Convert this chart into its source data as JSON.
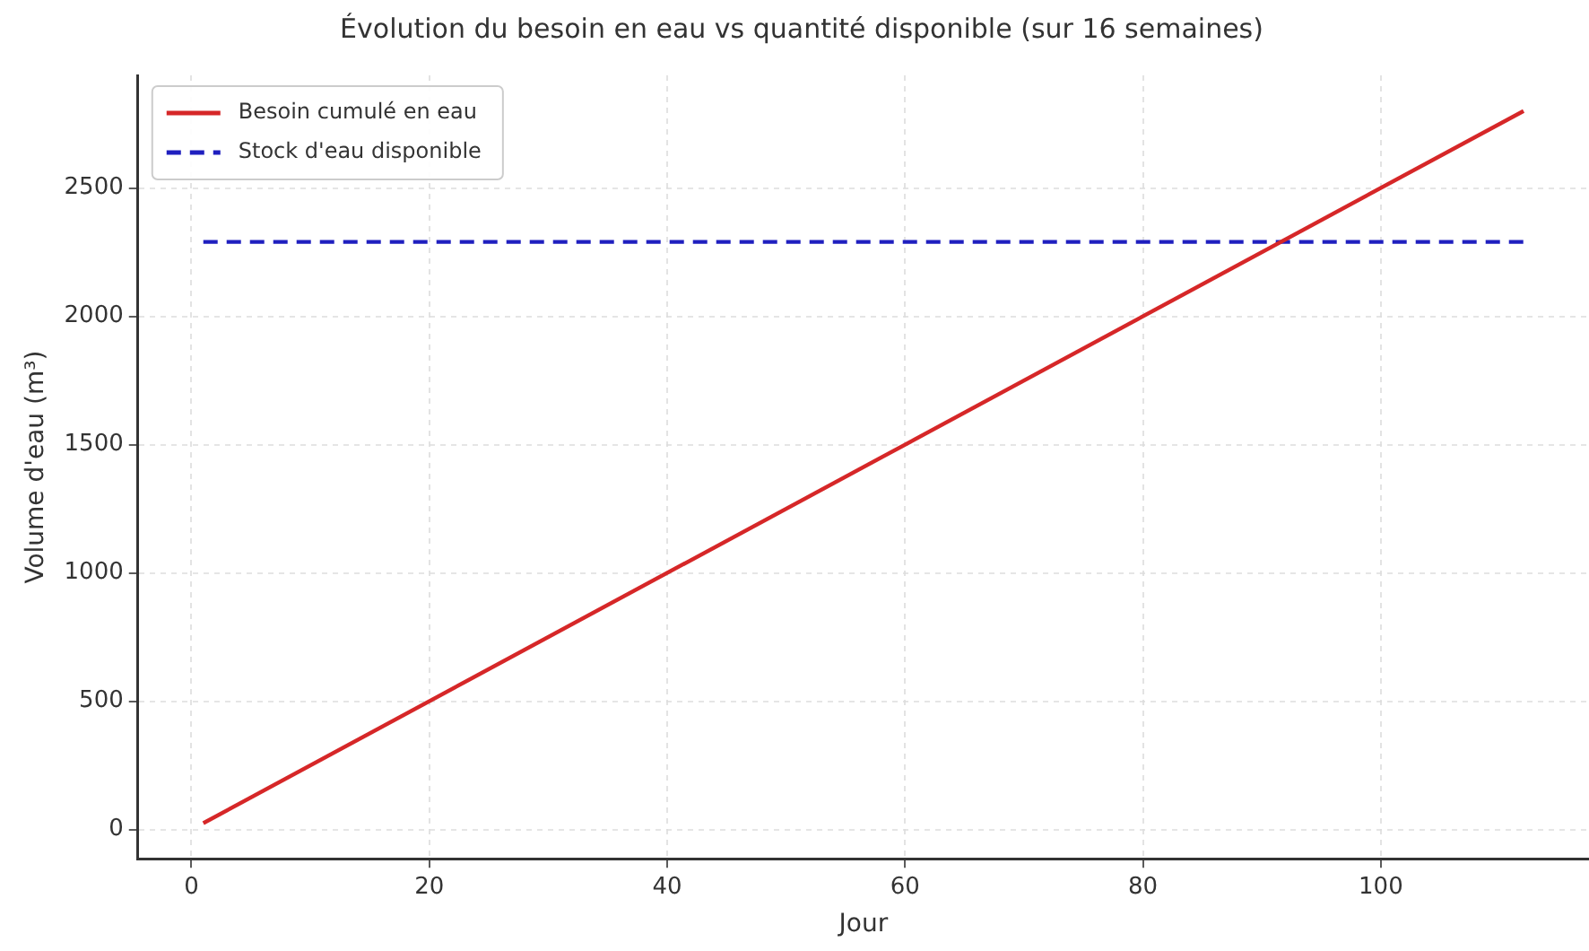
{
  "chart_data": {
    "type": "line",
    "title": "Évolution du besoin en eau vs quantité disponible (sur 16 semaines)",
    "xlabel": "Jour",
    "ylabel": "Volume d'eau (m³)",
    "x": [
      1,
      112
    ],
    "series": [
      {
        "name": "Besoin cumulé en eau",
        "color": "#d62728",
        "values": [
          25,
          2800
        ],
        "line_style": "solid"
      },
      {
        "name": "Stock d'eau disponible",
        "color": "#1f1fbf",
        "values": [
          2290,
          2290
        ],
        "line_style": "dashed"
      }
    ],
    "xlim": [
      -4.5,
      117.5
    ],
    "ylim": [
      -114,
      2939
    ],
    "xticks": [
      0,
      20,
      40,
      60,
      80,
      100
    ],
    "yticks": [
      0,
      500,
      1000,
      1500,
      2000,
      2500
    ],
    "grid": true,
    "legend": "top left",
    "marker": "none"
  }
}
